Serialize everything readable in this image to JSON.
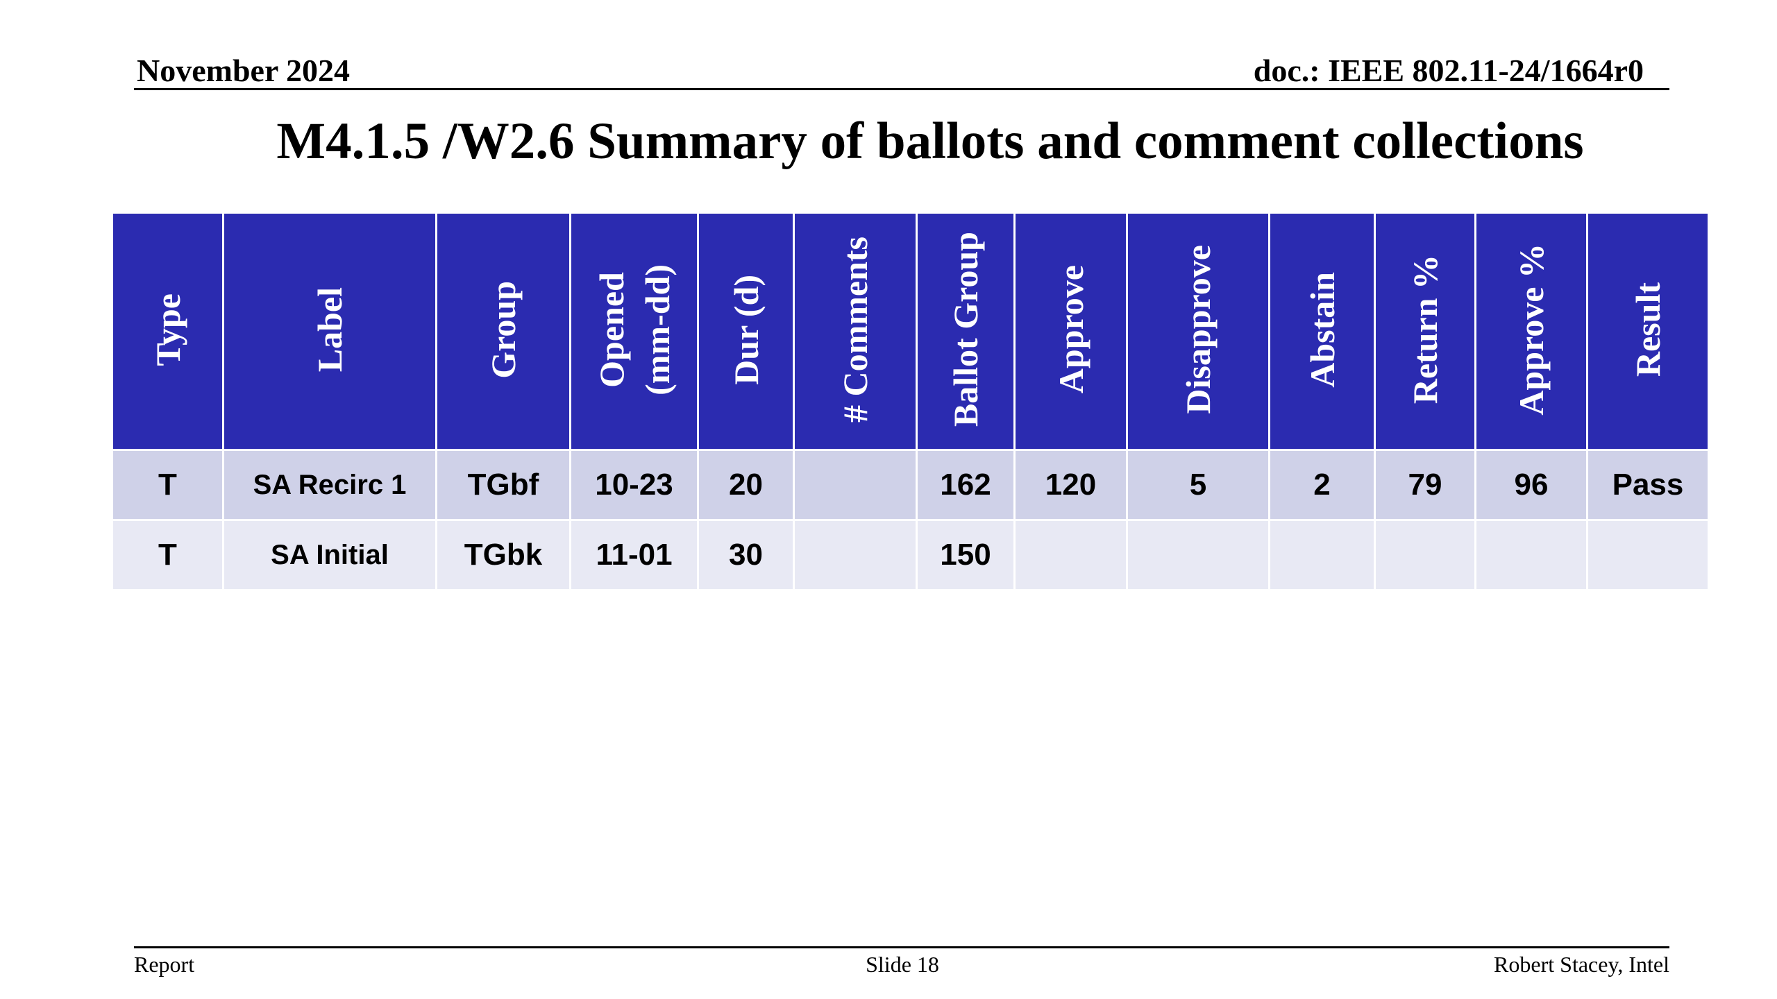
{
  "header": {
    "date": "November 2024",
    "doc": "doc.: IEEE 802.11-24/1664r0"
  },
  "title": "M4.1.5 /W2.6 Summary of ballots and comment collections",
  "table": {
    "columns": [
      "Type",
      "Label",
      "Group",
      "Opened\n(mm-dd)",
      "Dur (d)",
      "# Comments",
      "Ballot Group",
      "Approve",
      "Disapprove",
      "Abstain",
      "Return %",
      "Approve %",
      "Result"
    ],
    "rows": [
      {
        "type": "T",
        "label": "SA Recirc 1",
        "group": "TGbf",
        "opened": "10-23",
        "dur": "20",
        "comments": "",
        "ballot_group": "162",
        "approve": "120",
        "disapprove": "5",
        "abstain": "2",
        "return_pct": "79",
        "approve_pct": "96",
        "result": "Pass"
      },
      {
        "type": "T",
        "label": "SA Initial",
        "group": "TGbk",
        "opened": "11-01",
        "dur": "30",
        "comments": "",
        "ballot_group": "150",
        "approve": "",
        "disapprove": "",
        "abstain": "",
        "return_pct": "",
        "approve_pct": "",
        "result": ""
      }
    ]
  },
  "footer": {
    "left": "Report",
    "center": "Slide 18",
    "right": "Robert Stacey, Intel"
  },
  "colors": {
    "header_fill": "#2b2bb0",
    "row_odd": "#cfd1e8",
    "row_even": "#e8e9f4"
  }
}
